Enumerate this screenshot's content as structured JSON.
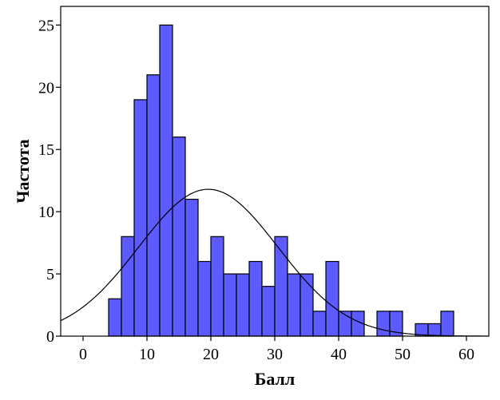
{
  "chart_data": {
    "type": "bar",
    "subtype": "histogram",
    "xlabel": "Балл",
    "ylabel": "Частота",
    "xlim": [
      -3.5,
      63.5
    ],
    "ylim": [
      0,
      26.5
    ],
    "xticks": [
      0,
      10,
      20,
      30,
      40,
      50,
      60
    ],
    "yticks": [
      0,
      5,
      10,
      15,
      20,
      25
    ],
    "bin_width": 2,
    "bins": [
      {
        "start": 4,
        "end": 6,
        "value": 3
      },
      {
        "start": 6,
        "end": 8,
        "value": 8
      },
      {
        "start": 8,
        "end": 10,
        "value": 19
      },
      {
        "start": 10,
        "end": 12,
        "value": 21
      },
      {
        "start": 12,
        "end": 14,
        "value": 25
      },
      {
        "start": 14,
        "end": 16,
        "value": 16
      },
      {
        "start": 16,
        "end": 18,
        "value": 11
      },
      {
        "start": 18,
        "end": 20,
        "value": 6
      },
      {
        "start": 20,
        "end": 22,
        "value": 8
      },
      {
        "start": 22,
        "end": 24,
        "value": 5
      },
      {
        "start": 24,
        "end": 26,
        "value": 5
      },
      {
        "start": 26,
        "end": 28,
        "value": 6
      },
      {
        "start": 28,
        "end": 30,
        "value": 4
      },
      {
        "start": 30,
        "end": 32,
        "value": 8
      },
      {
        "start": 32,
        "end": 34,
        "value": 5
      },
      {
        "start": 34,
        "end": 36,
        "value": 5
      },
      {
        "start": 36,
        "end": 38,
        "value": 2
      },
      {
        "start": 38,
        "end": 40,
        "value": 6
      },
      {
        "start": 40,
        "end": 42,
        "value": 2
      },
      {
        "start": 42,
        "end": 44,
        "value": 2
      },
      {
        "start": 46,
        "end": 48,
        "value": 2
      },
      {
        "start": 48,
        "end": 50,
        "value": 2
      },
      {
        "start": 52,
        "end": 54,
        "value": 1
      },
      {
        "start": 54,
        "end": 56,
        "value": 1
      },
      {
        "start": 56,
        "end": 58,
        "value": 2
      }
    ],
    "normal_curve": {
      "mean": 19.6,
      "std_dev": 10.9,
      "peak": 11.8
    },
    "grid": false,
    "colors": {
      "bar_fill": "#5b5bff",
      "bar_stroke": "#000000",
      "curve": "#000000"
    }
  }
}
